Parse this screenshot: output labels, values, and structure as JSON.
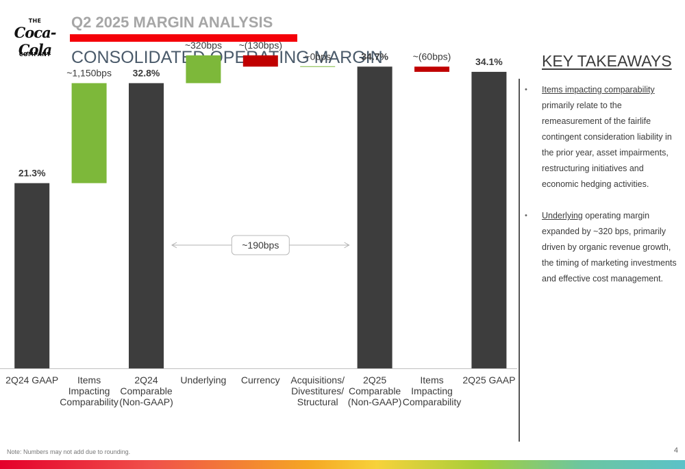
{
  "logo": {
    "the": "THE",
    "script": "Coca-Cola",
    "company": "COMPANY"
  },
  "kicker": "Q2 2025 MARGIN ANALYSIS",
  "headline": "CONSOLIDATED OPERATING MARGIN",
  "colors": {
    "brand_red": "#f40009",
    "bar_total": "#3d3d3d",
    "bar_increase": "#7db83a",
    "bar_decrease": "#c00000",
    "headline": "#4a5a6a"
  },
  "chart_data": {
    "type": "bar",
    "subtype": "waterfall",
    "title": "",
    "categories": [
      [
        "2Q24 GAAP"
      ],
      [
        "Items",
        "Impacting",
        "Comparability"
      ],
      [
        "2Q24",
        "Comparable",
        "(Non-GAAP)"
      ],
      [
        "Underlying"
      ],
      [
        "Currency"
      ],
      [
        "Acquisitions/",
        "Divestitures/",
        "Structural"
      ],
      [
        "2Q25",
        "Comparable",
        "(Non-GAAP)"
      ],
      [
        "Items",
        "Impacting",
        "Comparability"
      ],
      [
        "2Q25 GAAP"
      ]
    ],
    "values": [
      21.3,
      11.5,
      32.8,
      3.2,
      -1.3,
      0.0,
      34.7,
      -0.6,
      34.1
    ],
    "kinds": [
      "total",
      "increase",
      "total",
      "increase",
      "decrease",
      "neutral",
      "total",
      "decrease",
      "total"
    ],
    "labels": [
      "21.3%",
      "~1,150bps",
      "32.8%",
      "~320bps",
      "~(130bps)",
      "~0bps",
      "34.7%",
      "~(60bps)",
      "34.1%"
    ],
    "label_bold": [
      true,
      false,
      true,
      false,
      false,
      false,
      true,
      false,
      true
    ],
    "bridge": {
      "label": "~190bps",
      "from_index": 2,
      "to_index": 6
    },
    "unit": "%",
    "ylim": [
      0,
      40
    ],
    "grid": false,
    "legend": "none"
  },
  "takeaways": {
    "title": "KEY TAKEAWAYS",
    "bullets": [
      {
        "dot": "•",
        "lead": "Items impacting comparability",
        "text": " primarily relate to the remeasurement of the fairlife contingent consideration liability in the prior year, asset impairments, restructuring initiatives and economic hedging activities."
      },
      {
        "dot": "•",
        "lead": "Underlying",
        "text": " operating margin expanded by ~320 bps, primarily driven by organic revenue growth, the timing of marketing investments and effective cost management."
      }
    ]
  },
  "footer": {
    "note": "Note: Numbers may not add due to rounding.",
    "page": "4"
  }
}
